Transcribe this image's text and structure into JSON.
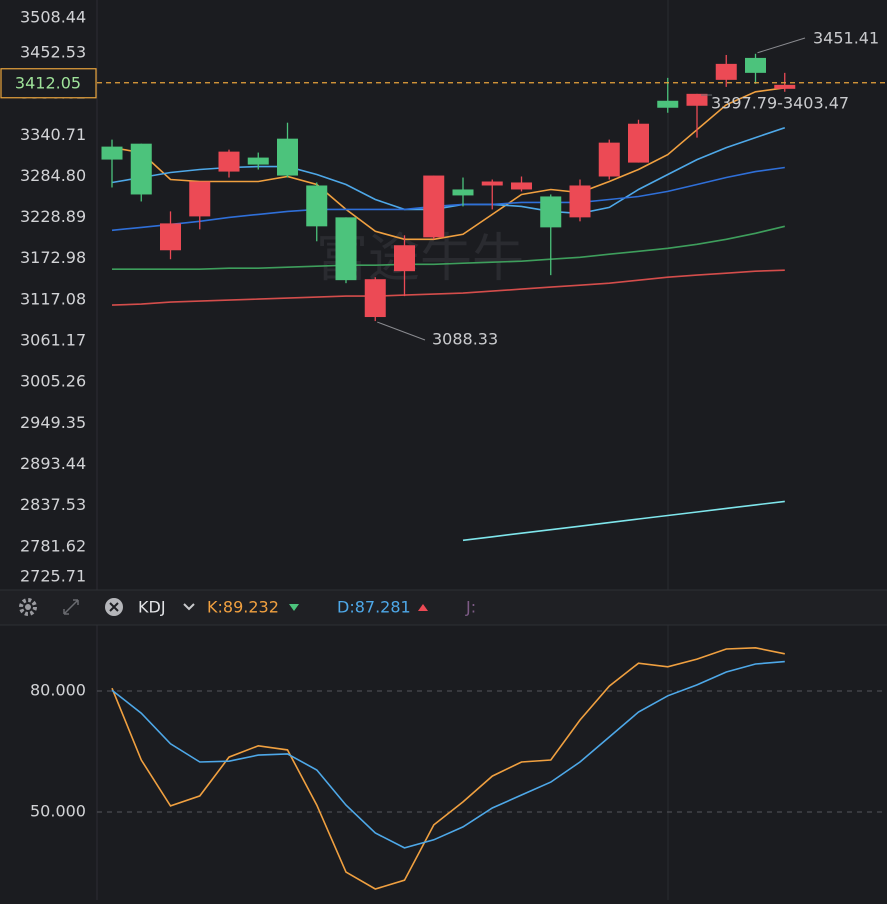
{
  "chart_data": [
    {
      "type": "candlestick",
      "open": [
        3325.3,
        3329.3,
        3184.5,
        3230.5,
        3291.4,
        3310.4,
        3336.1,
        3272.5,
        3229.2,
        3093.8,
        3156.1,
        3202.1,
        3267.1,
        3272.5,
        3267.1,
        3257.6,
        3229.2,
        3284.7,
        3303.6,
        3387.6,
        3380.8,
        3416.0,
        3445.8,
        3403.8
      ],
      "high": [
        3334.8,
        3329.3,
        3237.3,
        3277.9,
        3321.2,
        3317.2,
        3357.8,
        3276.6,
        3229.2,
        3147.9,
        3204.8,
        3286.0,
        3283.3,
        3280.6,
        3284.7,
        3260.3,
        3280.6,
        3334.8,
        3361.8,
        3418.7,
        3397.0,
        3449.8,
        3451.41,
        3425.5
      ],
      "low": [
        3269.8,
        3250.8,
        3172.3,
        3212.9,
        3283.3,
        3294.2,
        3283.3,
        3196.7,
        3139.8,
        3088.33,
        3122.2,
        3199.4,
        3244.1,
        3240.0,
        3264.4,
        3150.7,
        3223.8,
        3280.6,
        3303.6,
        3371.3,
        3337.5,
        3406.5,
        3410.6,
        3399.8
      ],
      "close": [
        3307.7,
        3260.3,
        3221.0,
        3277.9,
        3318.5,
        3300.9,
        3286.0,
        3217.0,
        3143.9,
        3145.2,
        3191.3,
        3286.0,
        3259.0,
        3277.9,
        3276.6,
        3215.6,
        3272.5,
        3330.7,
        3356.4,
        3378.1,
        3397.0,
        3437.7,
        3425.5,
        3409.2
      ],
      "up_color": "#ec4a55",
      "down_color": "#4cc37c",
      "lines": [
        {
          "color": "#f0a040",
          "values": [
            3323.9,
            3317.2,
            3280.6,
            3277.9,
            3277.9,
            3277.9,
            3284.7,
            3273.8,
            3240.0,
            3210.2,
            3199.4,
            3199.4,
            3206.2,
            3233.2,
            3260.3,
            3267.1,
            3263.0,
            3277.9,
            3294.2,
            3314.5,
            3348.3,
            3382.1,
            3399.8,
            3405.2
          ]
        },
        {
          "color": "#4ea8e8",
          "values": [
            3276.6,
            3283.3,
            3290.1,
            3294.2,
            3296.9,
            3298.2,
            3298.2,
            3287.4,
            3273.8,
            3253.5,
            3240.0,
            3240.0,
            3246.8,
            3246.8,
            3244.1,
            3237.3,
            3234.6,
            3242.7,
            3267.1,
            3287.4,
            3307.7,
            3323.9,
            3337.5,
            3351.0
          ]
        },
        {
          "color": "#2f6fd8",
          "values": [
            3211.6,
            3215.6,
            3219.7,
            3223.8,
            3229.2,
            3233.2,
            3237.3,
            3240.0,
            3240.0,
            3240.0,
            3240.0,
            3244.1,
            3246.8,
            3246.8,
            3249.5,
            3249.5,
            3249.5,
            3253.5,
            3257.6,
            3264.4,
            3273.8,
            3283.3,
            3291.4,
            3296.9
          ]
        },
        {
          "color": "#3e9e5c",
          "values": [
            3158.8,
            3158.8,
            3158.8,
            3158.8,
            3160.1,
            3160.1,
            3161.5,
            3162.8,
            3164.2,
            3164.2,
            3165.5,
            3165.5,
            3166.9,
            3168.3,
            3169.6,
            3172.3,
            3175.0,
            3179.1,
            3183.1,
            3187.2,
            3192.6,
            3199.4,
            3207.5,
            3217.0
          ]
        },
        {
          "color": "#d44d4b",
          "values": [
            3110.0,
            3111.4,
            3114.1,
            3115.4,
            3116.8,
            3118.2,
            3119.5,
            3120.9,
            3122.2,
            3122.2,
            3123.6,
            3124.9,
            3126.3,
            3129.0,
            3131.7,
            3134.4,
            3137.1,
            3139.8,
            3143.9,
            3147.9,
            3150.7,
            3153.4,
            3156.1,
            3157.4
          ]
        },
        {
          "color": "#7fe6ec",
          "values": [
            null,
            null,
            null,
            null,
            null,
            null,
            null,
            null,
            null,
            null,
            null,
            null,
            2790.5,
            2795.3,
            2800.1,
            2804.9,
            2809.7,
            2814.6,
            2819.4,
            2824.2,
            2829.0,
            2833.8,
            2838.6,
            2843.4
          ]
        }
      ],
      "ylim": [
        2725.71,
        3508.44
      ],
      "yticks": [
        3508.44,
        3452.53,
        3396.62,
        3340.71,
        {
          "value": 3284.8,
          "label": "3284.80"
        },
        3228.89,
        3172.98,
        3117.08,
        3061.17,
        3005.26,
        2949.35,
        2893.44,
        2837.53,
        2781.62,
        2725.71
      ],
      "last_price": 3412.05,
      "range_label": "3397.79-3403.47",
      "watermark": "富途牛牛"
    },
    {
      "type": "line",
      "indicator": "KDJ",
      "legend_labels": [
        "K:89.232",
        "D:87.281",
        "J:"
      ],
      "series": [
        {
          "color": "#f0a040",
          "values": [
            80.7,
            62.9,
            51.5,
            54.0,
            63.6,
            66.4,
            65.4,
            51.7,
            35.1,
            30.9,
            33.1,
            46.8,
            52.5,
            58.9,
            62.4,
            62.9,
            72.8,
            81.2,
            86.9,
            86.0,
            87.9,
            90.4,
            90.7,
            89.232
          ]
        },
        {
          "color": "#4ea8e8",
          "values": [
            80.2,
            74.5,
            66.9,
            62.4,
            62.6,
            64.1,
            64.4,
            60.4,
            51.7,
            44.8,
            41.1,
            43.1,
            46.3,
            51.0,
            54.2,
            57.4,
            62.4,
            68.6,
            74.8,
            78.8,
            81.5,
            84.7,
            86.7,
            87.281
          ]
        }
      ],
      "ylim": [
        28.18,
        96.36
      ],
      "yticks": [
        {
          "value": 80,
          "label": "80.000"
        },
        {
          "value": 50,
          "label": "50.000"
        }
      ]
    }
  ]
}
